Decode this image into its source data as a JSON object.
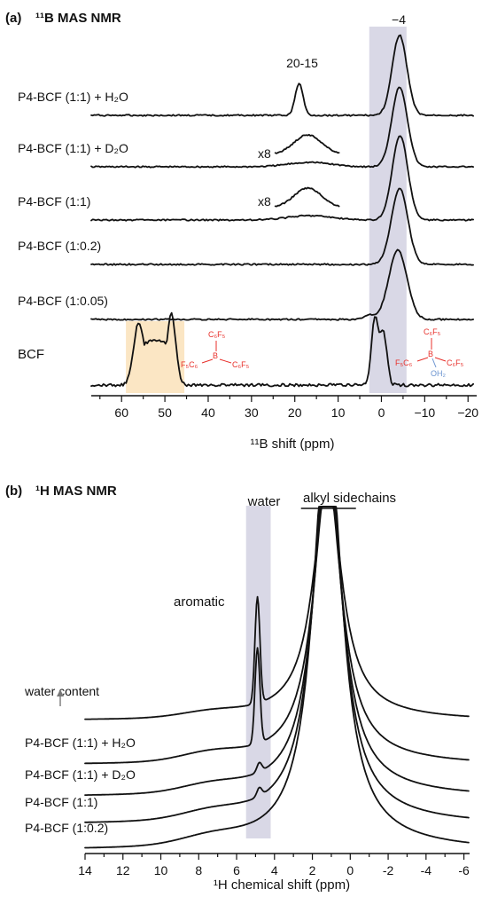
{
  "colors": {
    "highlight_gray": "#d9d8e6",
    "highlight_orange": "#fbe6c4",
    "bcf_red": "#e8302b",
    "water_blue": "#6a93d0",
    "trace": "#111111",
    "arrow_gray": "#777777"
  },
  "chart_data": [
    {
      "type": "line",
      "panel_label": "(a)",
      "title": "¹¹B MAS NMR",
      "xlabel": "¹¹B shift (ppm)",
      "xlim": [
        67,
        -22
      ],
      "x_reversed": true,
      "ticks": [
        60,
        50,
        40,
        30,
        20,
        10,
        0,
        -10,
        -20
      ],
      "tick_labels": [
        "60",
        "50",
        "40",
        "30",
        "20",
        "10",
        "0",
        "−10",
        "−20"
      ],
      "annotations": {
        "peak_main": "−4",
        "peak_15": "20-15",
        "scale1": "x8",
        "scale2": "x8"
      },
      "highlights": [
        {
          "name": "borate region",
          "from": 2.8,
          "to": -5.8,
          "color": "highlight_gray"
        },
        {
          "name": "trigonal BCF region",
          "from": 59,
          "to": 45.5,
          "color": "highlight_orange"
        }
      ],
      "series": [
        {
          "name": "P4-BCF (1:1) + H₂O",
          "peaks": [
            [
              19,
              0.38,
              0.9
            ],
            [
              -4.2,
              0.95,
              1.7
            ]
          ]
        },
        {
          "name": "P4-BCF (1:1) + D₂O",
          "peaks": [
            [
              16.5,
              0.05,
              5
            ],
            [
              -4.2,
              0.9,
              1.8
            ]
          ],
          "inset_scale": "x8"
        },
        {
          "name": "P4-BCF (1:1)",
          "peaks": [
            [
              16.5,
              0.05,
              5
            ],
            [
              -4.3,
              0.95,
              1.8
            ]
          ],
          "inset_scale": "x8"
        },
        {
          "name": "P4-BCF (1:0.2)",
          "peaks": [
            [
              -4.2,
              0.93,
              1.9
            ]
          ]
        },
        {
          "name": "P4-BCF (1:0.05)",
          "peaks": [
            [
              -3.8,
              0.95,
              2.1
            ]
          ]
        },
        {
          "name": "BCF",
          "peaks": [
            [
              56,
              0.75,
              1.2
            ],
            [
              48.5,
              0.85,
              1.0
            ],
            [
              1.5,
              0.8,
              0.8
            ],
            [
              -0.5,
              0.6,
              0.8
            ]
          ],
          "label_color": "bcf_red"
        }
      ],
      "structures": {
        "bcf": {
          "top": "C₆F₅",
          "center": "B",
          "left": "F₅C₆",
          "right": "C₆F₅"
        },
        "bcf_water": {
          "top": "C₆F₅",
          "center": "B",
          "left": "F₅C₆",
          "right": "C₆F₅",
          "bottom": "OH₂"
        }
      }
    },
    {
      "type": "line",
      "panel_label": "(b)",
      "title": "¹H MAS NMR",
      "xlabel": "¹H chemical shift (ppm)",
      "xlim": [
        14,
        -6.3
      ],
      "x_reversed": true,
      "ticks": [
        14,
        12,
        10,
        8,
        6,
        4,
        2,
        0,
        -2,
        -4,
        -6
      ],
      "tick_labels": [
        "14",
        "12",
        "10",
        "8",
        "6",
        "4",
        "2",
        "0",
        "-2",
        "-4",
        "-6"
      ],
      "annotations": {
        "water": "water",
        "alkyl": "alkyl sidechains",
        "aromatic": "aromatic",
        "water_content": "water content"
      },
      "highlights": [
        {
          "name": "water region",
          "from": 5.5,
          "to": 4.2,
          "color": "highlight_gray"
        }
      ],
      "series": [
        {
          "name": "water content",
          "water_peak": 4.9,
          "water_amp": 4.0,
          "aromatic": 0.55
        },
        {
          "name": "P4-BCF (1:1) + H₂O",
          "water_peak": 4.9,
          "water_amp": 3.0,
          "aromatic": 0.7
        },
        {
          "name": "P4-BCF (1:1) + D₂O",
          "water_peak": 4.8,
          "water_amp": 0.25,
          "aromatic": 0.55
        },
        {
          "name": "P4-BCF (1:1)",
          "water_peak": 4.8,
          "water_amp": 0.2,
          "aromatic": 0.5
        },
        {
          "name": "P4-BCF (1:0.2)",
          "water_peak": 4.8,
          "water_amp": 0.0,
          "aromatic": 0.45
        }
      ]
    }
  ]
}
